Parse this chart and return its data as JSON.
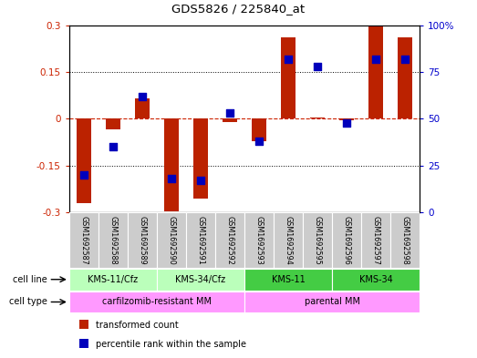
{
  "title": "GDS5826 / 225840_at",
  "samples": [
    "GSM1692587",
    "GSM1692588",
    "GSM1692589",
    "GSM1692590",
    "GSM1692591",
    "GSM1692592",
    "GSM1692593",
    "GSM1692594",
    "GSM1692595",
    "GSM1692596",
    "GSM1692597",
    "GSM1692598"
  ],
  "transformed_count": [
    -0.27,
    -0.035,
    0.065,
    -0.295,
    -0.255,
    -0.01,
    -0.07,
    0.26,
    0.005,
    -0.005,
    0.3,
    0.26
  ],
  "percentile_rank": [
    20,
    35,
    62,
    18,
    17,
    53,
    38,
    82,
    78,
    48,
    82,
    82
  ],
  "cell_line_groups": [
    {
      "label": "KMS-11/Cfz",
      "start": 0,
      "end": 2,
      "color": "#bbffbb"
    },
    {
      "label": "KMS-34/Cfz",
      "start": 3,
      "end": 5,
      "color": "#bbffbb"
    },
    {
      "label": "KMS-11",
      "start": 6,
      "end": 8,
      "color": "#44cc44"
    },
    {
      "label": "KMS-34",
      "start": 9,
      "end": 11,
      "color": "#44cc44"
    }
  ],
  "cell_type_groups": [
    {
      "label": "carfilzomib-resistant MM",
      "start": 0,
      "end": 5,
      "color": "#ff88ff"
    },
    {
      "label": "parental MM",
      "start": 6,
      "end": 11,
      "color": "#ff88ff"
    }
  ],
  "bar_color": "#bb2200",
  "dot_color": "#0000bb",
  "ylim_left": [
    -0.3,
    0.3
  ],
  "ylim_right": [
    0,
    100
  ],
  "yticks_left": [
    -0.3,
    -0.15,
    0,
    0.15,
    0.3
  ],
  "yticks_right": [
    0,
    25,
    50,
    75,
    100
  ],
  "ytick_labels_left": [
    "-0.3",
    "-0.15",
    "0",
    "0.15",
    "0.3"
  ],
  "ytick_labels_right": [
    "0",
    "25",
    "50",
    "75",
    "100%"
  ],
  "legend_items": [
    {
      "color": "#bb2200",
      "label": "transformed count"
    },
    {
      "color": "#0000bb",
      "label": "percentile rank within the sample"
    }
  ],
  "background_color": "#ffffff",
  "bar_width": 0.5,
  "dot_size": 28
}
